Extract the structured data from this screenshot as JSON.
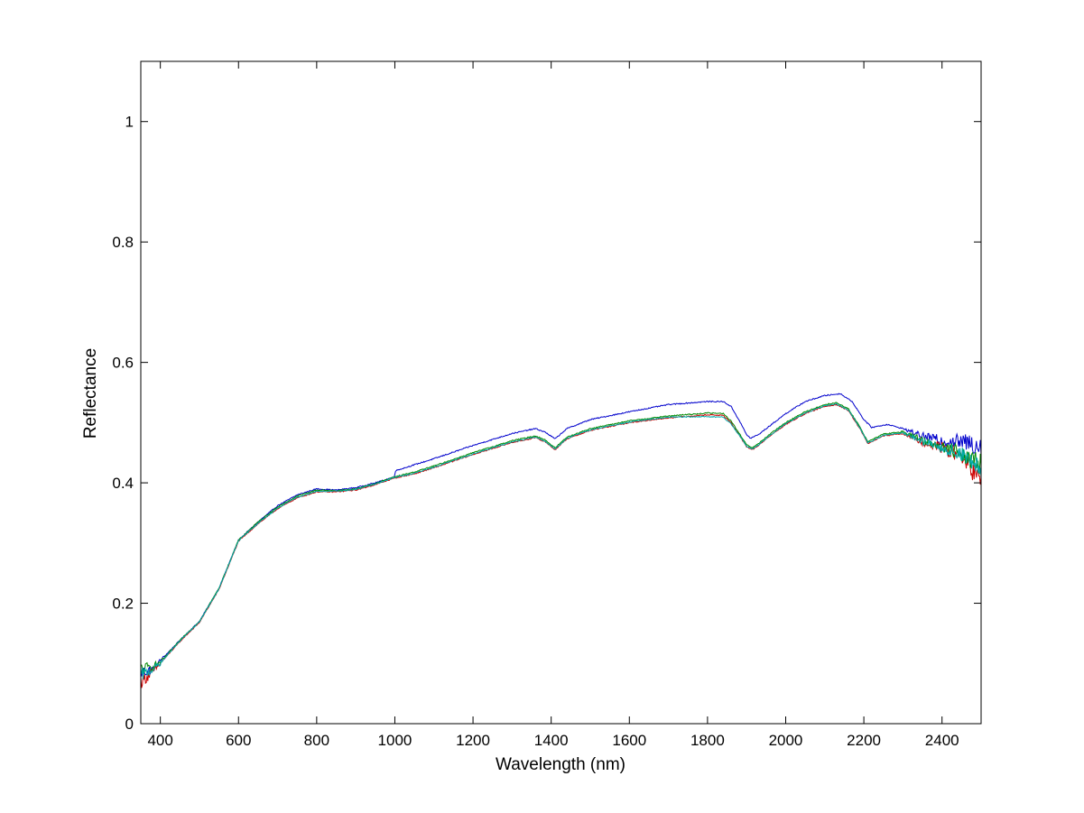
{
  "chart_data": {
    "type": "line",
    "title": "",
    "xlabel": "Wavelength (nm)",
    "ylabel": "Reflectance",
    "xlim": [
      350,
      2500
    ],
    "ylim": [
      0,
      1.1
    ],
    "xticks": [
      400,
      600,
      800,
      1000,
      1200,
      1400,
      1600,
      1800,
      2000,
      2200,
      2400
    ],
    "yticks": [
      0,
      0.2,
      0.4,
      0.6,
      0.8,
      1
    ],
    "ytick_labels": [
      "0",
      "0.2",
      "0.4",
      "0.6",
      "0.8",
      "1"
    ],
    "grid": false,
    "legend": "none",
    "series": [
      {
        "color": "#0000cc",
        "noisy_ends": true,
        "x": [
          350,
          380,
          400,
          430,
          460,
          500,
          550,
          600,
          650,
          700,
          750,
          800,
          850,
          900,
          950,
          999,
          1001,
          1050,
          1100,
          1200,
          1300,
          1360,
          1385,
          1410,
          1440,
          1500,
          1600,
          1700,
          1800,
          1840,
          1860,
          1880,
          1900,
          1910,
          1930,
          1960,
          2000,
          2050,
          2100,
          2140,
          2170,
          2200,
          2220,
          2260,
          2300,
          2350,
          2400,
          2450,
          2500
        ],
        "y": [
          0.085,
          0.09,
          0.105,
          0.125,
          0.145,
          0.17,
          0.225,
          0.305,
          0.335,
          0.362,
          0.38,
          0.39,
          0.388,
          0.392,
          0.4,
          0.41,
          0.42,
          0.43,
          0.44,
          0.462,
          0.482,
          0.49,
          0.484,
          0.473,
          0.49,
          0.505,
          0.518,
          0.53,
          0.535,
          0.535,
          0.527,
          0.505,
          0.48,
          0.474,
          0.48,
          0.495,
          0.515,
          0.535,
          0.545,
          0.548,
          0.535,
          0.505,
          0.492,
          0.497,
          0.49,
          0.478,
          0.47,
          0.468,
          0.462
        ]
      },
      {
        "color": "#cc0000",
        "noisy_ends": true,
        "x": [
          350,
          380,
          400,
          430,
          460,
          500,
          550,
          600,
          650,
          700,
          750,
          800,
          850,
          900,
          950,
          1000,
          1050,
          1100,
          1200,
          1300,
          1360,
          1385,
          1410,
          1440,
          1500,
          1600,
          1700,
          1800,
          1840,
          1860,
          1880,
          1900,
          1915,
          1930,
          1960,
          2000,
          2050,
          2100,
          2130,
          2160,
          2190,
          2210,
          2250,
          2300,
          2350,
          2400,
          2450,
          2500
        ],
        "y": [
          0.07,
          0.085,
          0.1,
          0.122,
          0.143,
          0.168,
          0.223,
          0.303,
          0.332,
          0.357,
          0.375,
          0.385,
          0.385,
          0.388,
          0.397,
          0.408,
          0.415,
          0.425,
          0.447,
          0.467,
          0.475,
          0.468,
          0.455,
          0.473,
          0.487,
          0.5,
          0.508,
          0.513,
          0.512,
          0.5,
          0.48,
          0.46,
          0.455,
          0.462,
          0.478,
          0.497,
          0.515,
          0.527,
          0.53,
          0.52,
          0.49,
          0.465,
          0.478,
          0.482,
          0.468,
          0.458,
          0.445,
          0.4
        ]
      },
      {
        "color": "#008800",
        "noisy_ends": true,
        "x": [
          350,
          380,
          400,
          430,
          460,
          500,
          550,
          600,
          650,
          700,
          750,
          800,
          850,
          900,
          950,
          1000,
          1050,
          1100,
          1200,
          1300,
          1360,
          1385,
          1410,
          1440,
          1500,
          1600,
          1700,
          1800,
          1840,
          1860,
          1880,
          1900,
          1915,
          1930,
          1960,
          2000,
          2050,
          2100,
          2130,
          2160,
          2190,
          2210,
          2250,
          2300,
          2350,
          2400,
          2450,
          2500
        ],
        "y": [
          0.09,
          0.095,
          0.102,
          0.124,
          0.145,
          0.17,
          0.225,
          0.305,
          0.335,
          0.36,
          0.378,
          0.388,
          0.387,
          0.39,
          0.399,
          0.41,
          0.418,
          0.428,
          0.45,
          0.47,
          0.478,
          0.471,
          0.458,
          0.476,
          0.49,
          0.503,
          0.511,
          0.516,
          0.515,
          0.503,
          0.483,
          0.463,
          0.458,
          0.465,
          0.481,
          0.5,
          0.518,
          0.53,
          0.533,
          0.523,
          0.493,
          0.468,
          0.481,
          0.485,
          0.471,
          0.46,
          0.45,
          0.43
        ]
      },
      {
        "color": "#00aaaa",
        "noisy_ends": true,
        "x": [
          350,
          380,
          400,
          430,
          460,
          500,
          550,
          600,
          650,
          700,
          750,
          800,
          850,
          900,
          950,
          1000,
          1050,
          1100,
          1200,
          1300,
          1360,
          1385,
          1410,
          1440,
          1500,
          1600,
          1700,
          1800,
          1840,
          1860,
          1880,
          1900,
          1915,
          1930,
          1960,
          2000,
          2050,
          2100,
          2130,
          2160,
          2190,
          2210,
          2250,
          2300,
          2350,
          2400,
          2450,
          2500
        ],
        "y": [
          0.08,
          0.09,
          0.1,
          0.123,
          0.144,
          0.169,
          0.224,
          0.304,
          0.333,
          0.358,
          0.376,
          0.386,
          0.386,
          0.389,
          0.398,
          0.409,
          0.416,
          0.426,
          0.448,
          0.468,
          0.476,
          0.469,
          0.456,
          0.474,
          0.488,
          0.501,
          0.509,
          0.51,
          0.509,
          0.498,
          0.48,
          0.461,
          0.456,
          0.463,
          0.479,
          0.498,
          0.516,
          0.528,
          0.531,
          0.521,
          0.491,
          0.466,
          0.479,
          0.483,
          0.469,
          0.459,
          0.447,
          0.42
        ]
      }
    ]
  }
}
